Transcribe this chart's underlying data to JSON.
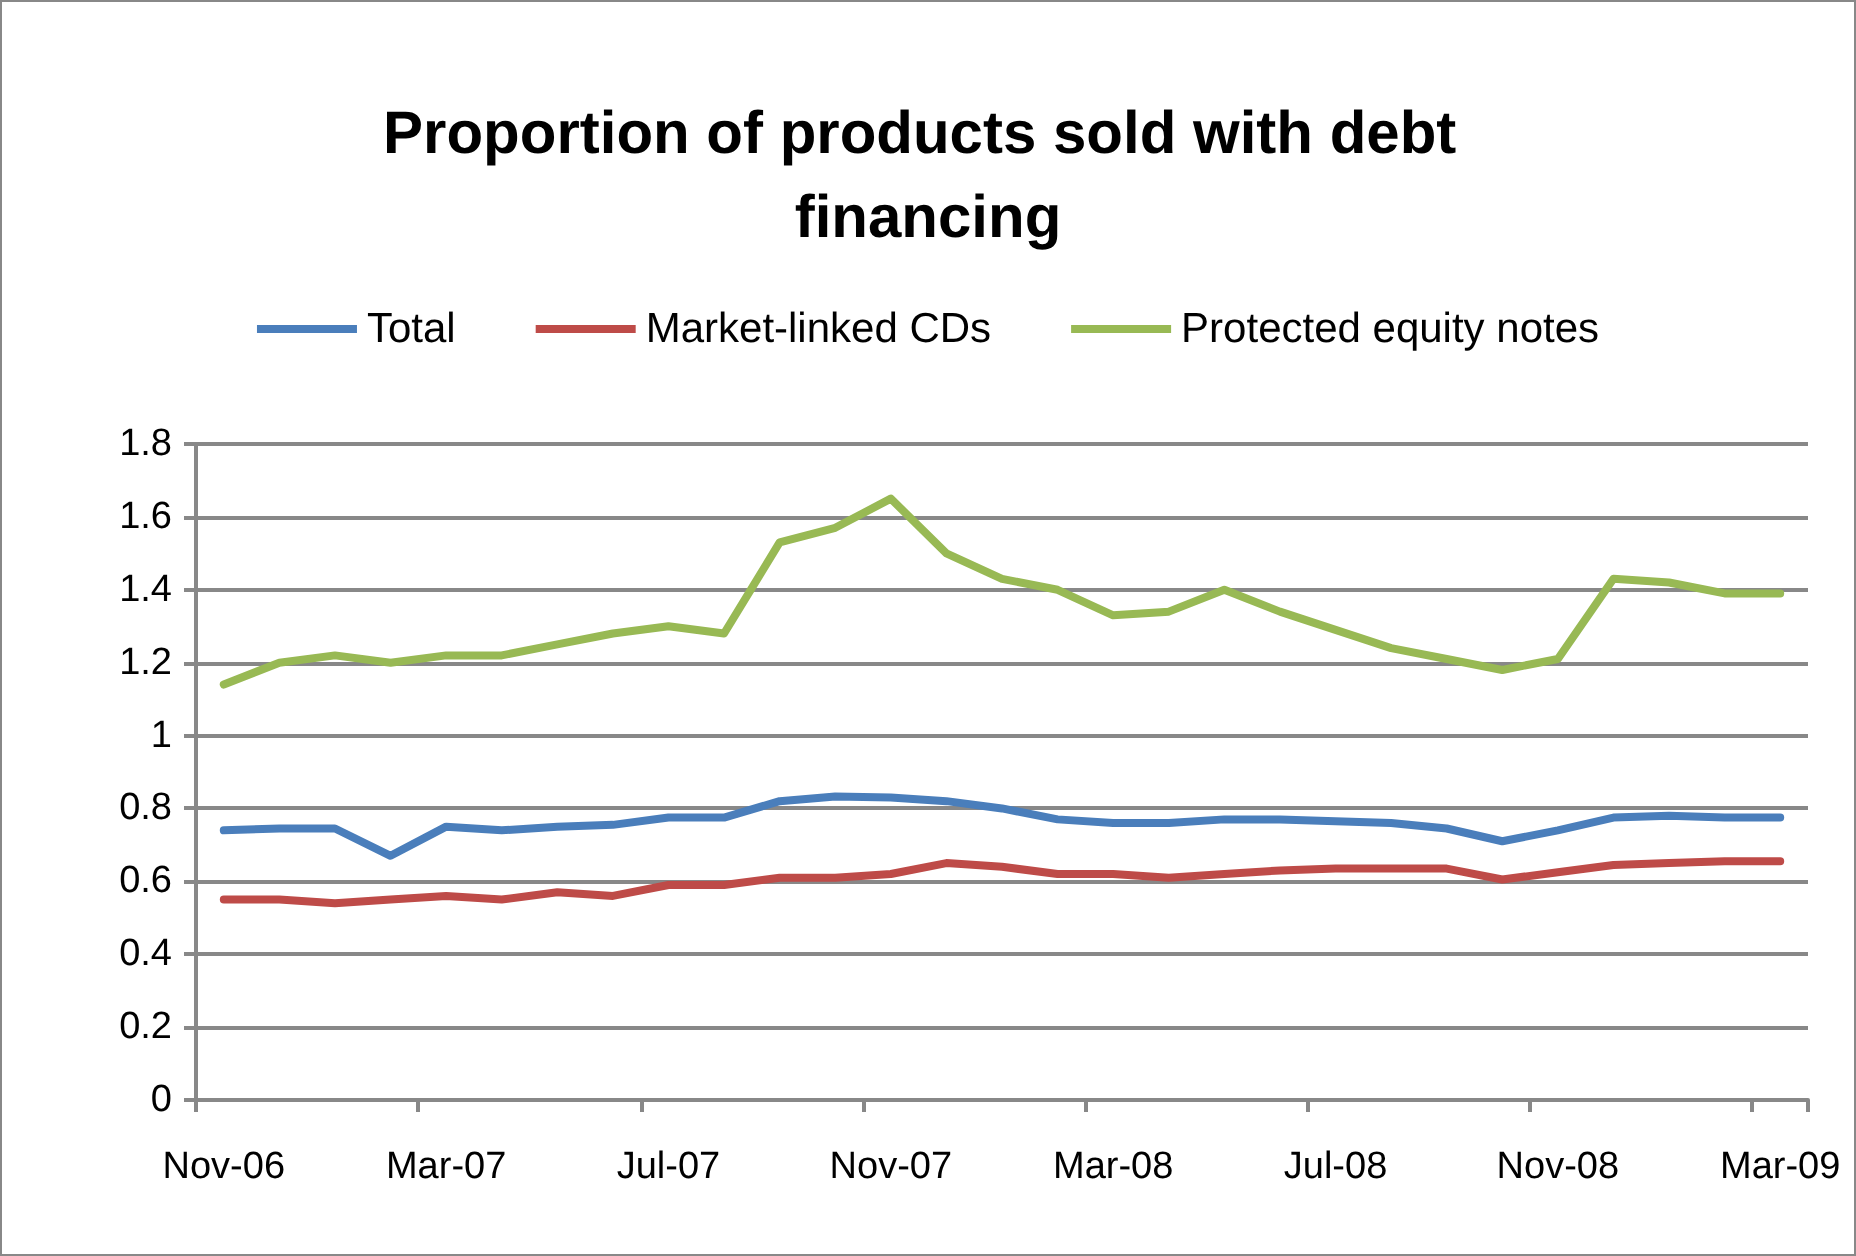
{
  "chart_data": {
    "type": "line",
    "title": "Proportion of products sold with debt financing",
    "categories": [
      "Nov-06",
      null,
      null,
      null,
      "Mar-07",
      null,
      null,
      null,
      "Jul-07",
      null,
      null,
      null,
      "Nov-07",
      null,
      null,
      null,
      "Mar-08",
      null,
      null,
      null,
      "Jul-08",
      null,
      null,
      null,
      "Nov-08",
      null,
      null,
      null,
      "Mar-09"
    ],
    "series": [
      {
        "name": "Total",
        "color": "#4a7ebb",
        "values": [
          0.74,
          0.745,
          0.745,
          0.67,
          0.75,
          0.74,
          0.75,
          0.755,
          0.775,
          0.775,
          0.82,
          0.833,
          0.83,
          0.82,
          0.8,
          0.77,
          0.76,
          0.76,
          0.77,
          0.77,
          0.765,
          0.76,
          0.745,
          0.71,
          0.74,
          0.775,
          0.78,
          0.775,
          0.775
        ]
      },
      {
        "name": "Market-linked CDs",
        "color": "#be4b48",
        "values": [
          0.55,
          0.55,
          0.54,
          0.55,
          0.56,
          0.55,
          0.57,
          0.56,
          0.59,
          0.59,
          0.61,
          0.61,
          0.62,
          0.65,
          0.64,
          0.62,
          0.62,
          0.61,
          0.62,
          0.63,
          0.635,
          0.635,
          0.635,
          0.605,
          0.625,
          0.645,
          0.65,
          0.655,
          0.655
        ]
      },
      {
        "name": "Protected equity notes",
        "color": "#98b954",
        "values": [
          1.14,
          1.2,
          1.22,
          1.2,
          1.22,
          1.22,
          1.25,
          1.28,
          1.3,
          1.28,
          1.53,
          1.57,
          1.65,
          1.5,
          1.43,
          1.4,
          1.33,
          1.34,
          1.4,
          1.34,
          1.29,
          1.24,
          1.21,
          1.18,
          1.21,
          1.43,
          1.42,
          1.39,
          1.39
        ]
      }
    ],
    "ylim": [
      0,
      1.8
    ],
    "yticks": [
      0,
      0.2,
      0.4,
      0.6,
      0.8,
      1,
      1.2,
      1.4,
      1.6,
      1.8
    ],
    "grid": "y",
    "legend": "top",
    "marker": "none",
    "line_style": "solid"
  }
}
